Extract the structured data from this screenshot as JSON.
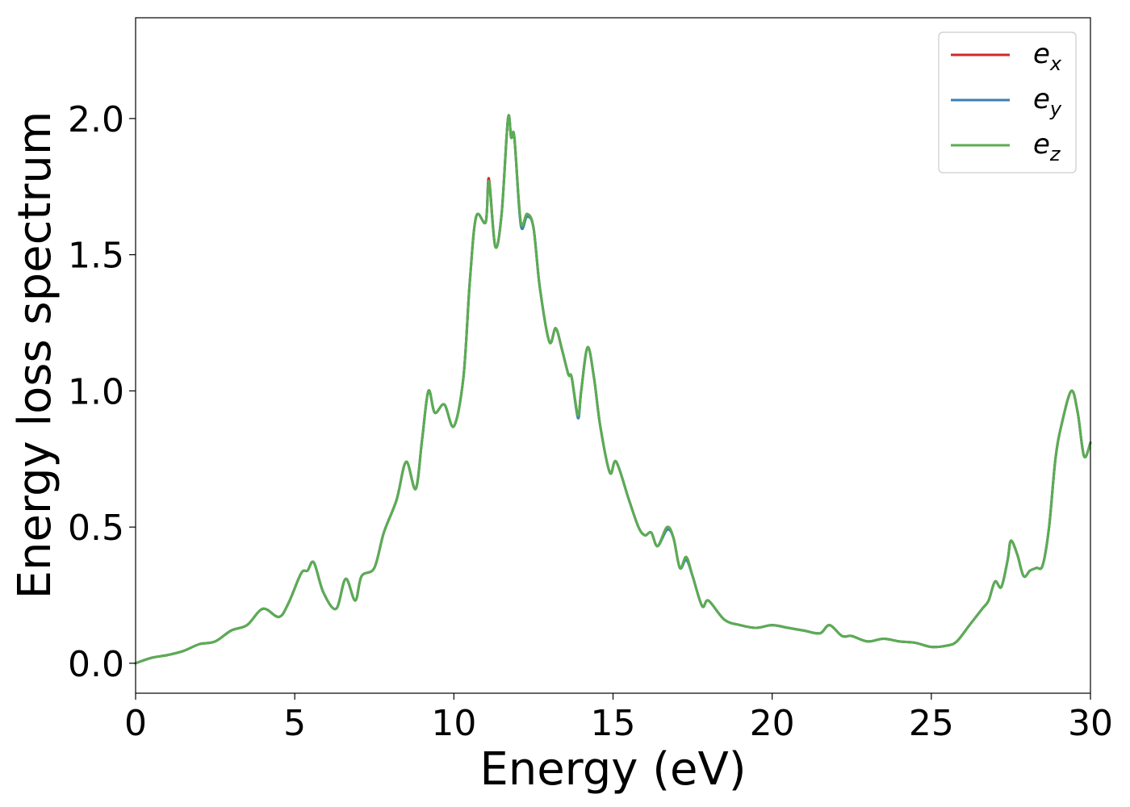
{
  "chart_data": {
    "type": "line",
    "title": "",
    "xlabel": "Energy (eV)",
    "ylabel": "Energy loss spectrum",
    "xlim": [
      0,
      30
    ],
    "ylim": [
      -0.11,
      2.37
    ],
    "xticks": [
      0,
      5,
      10,
      15,
      20,
      25,
      30
    ],
    "xtick_labels": [
      "0",
      "5",
      "10",
      "15",
      "20",
      "25",
      "30"
    ],
    "yticks": [
      0.0,
      0.5,
      1.0,
      1.5,
      2.0
    ],
    "ytick_labels": [
      "0.0",
      "0.5",
      "1.0",
      "1.5",
      "2.0"
    ],
    "grid": false,
    "legend_position": "top-right",
    "x": [
      0,
      0.5,
      1.0,
      1.5,
      2.0,
      2.5,
      3.0,
      3.5,
      4.0,
      4.5,
      4.8,
      5.2,
      5.4,
      5.6,
      5.9,
      6.3,
      6.6,
      6.9,
      7.1,
      7.5,
      7.8,
      8.2,
      8.5,
      8.8,
      9.0,
      9.2,
      9.4,
      9.7,
      10.0,
      10.3,
      10.5,
      10.7,
      11.0,
      11.1,
      11.3,
      11.5,
      11.7,
      11.8,
      11.9,
      12.1,
      12.3,
      12.5,
      12.7,
      13.0,
      13.2,
      13.4,
      13.6,
      13.7,
      13.9,
      14.0,
      14.2,
      14.4,
      14.6,
      14.9,
      15.1,
      15.5,
      15.8,
      16.0,
      16.2,
      16.4,
      16.7,
      16.9,
      17.1,
      17.3,
      17.5,
      17.8,
      18.0,
      18.5,
      19.0,
      19.5,
      20.0,
      20.5,
      21.0,
      21.5,
      21.8,
      22.2,
      22.5,
      23.0,
      23.5,
      24.0,
      24.5,
      25.0,
      25.5,
      25.8,
      26.2,
      26.6,
      26.8,
      27.0,
      27.2,
      27.4,
      27.5,
      27.7,
      27.9,
      28.1,
      28.3,
      28.5,
      28.7,
      28.9,
      29.1,
      29.4,
      29.6,
      29.8,
      30.0
    ],
    "series": [
      {
        "name": "e_x",
        "color": "#d62728",
        "values": [
          0.0,
          0.02,
          0.03,
          0.045,
          0.07,
          0.08,
          0.12,
          0.14,
          0.2,
          0.17,
          0.22,
          0.33,
          0.34,
          0.37,
          0.26,
          0.2,
          0.31,
          0.23,
          0.32,
          0.35,
          0.48,
          0.6,
          0.74,
          0.64,
          0.82,
          1.0,
          0.92,
          0.95,
          0.87,
          1.05,
          1.4,
          1.64,
          1.62,
          1.78,
          1.53,
          1.65,
          2.0,
          1.93,
          1.93,
          1.62,
          1.65,
          1.6,
          1.38,
          1.18,
          1.23,
          1.15,
          1.06,
          1.05,
          0.91,
          1.0,
          1.16,
          1.05,
          0.87,
          0.7,
          0.74,
          0.6,
          0.5,
          0.47,
          0.48,
          0.43,
          0.5,
          0.46,
          0.35,
          0.39,
          0.32,
          0.21,
          0.23,
          0.16,
          0.14,
          0.13,
          0.14,
          0.13,
          0.12,
          0.11,
          0.14,
          0.1,
          0.1,
          0.08,
          0.09,
          0.08,
          0.075,
          0.06,
          0.065,
          0.08,
          0.14,
          0.2,
          0.23,
          0.3,
          0.28,
          0.38,
          0.45,
          0.4,
          0.32,
          0.34,
          0.35,
          0.36,
          0.5,
          0.75,
          0.88,
          1.0,
          0.92,
          0.76,
          0.81
        ]
      },
      {
        "name": "e_y",
        "color": "#3a7fb5",
        "values": [
          0.0,
          0.02,
          0.03,
          0.045,
          0.07,
          0.08,
          0.12,
          0.14,
          0.2,
          0.17,
          0.22,
          0.33,
          0.34,
          0.37,
          0.26,
          0.2,
          0.31,
          0.23,
          0.32,
          0.35,
          0.48,
          0.6,
          0.74,
          0.64,
          0.82,
          1.0,
          0.92,
          0.95,
          0.87,
          1.05,
          1.4,
          1.64,
          1.62,
          1.77,
          1.53,
          1.65,
          2.0,
          1.93,
          1.93,
          1.61,
          1.64,
          1.6,
          1.38,
          1.18,
          1.23,
          1.15,
          1.06,
          1.05,
          0.9,
          1.0,
          1.16,
          1.05,
          0.87,
          0.7,
          0.74,
          0.6,
          0.5,
          0.47,
          0.48,
          0.43,
          0.49,
          0.46,
          0.35,
          0.38,
          0.32,
          0.21,
          0.23,
          0.16,
          0.14,
          0.13,
          0.14,
          0.13,
          0.12,
          0.11,
          0.14,
          0.1,
          0.1,
          0.08,
          0.09,
          0.08,
          0.075,
          0.06,
          0.065,
          0.08,
          0.14,
          0.2,
          0.23,
          0.3,
          0.28,
          0.38,
          0.45,
          0.4,
          0.32,
          0.34,
          0.35,
          0.36,
          0.5,
          0.75,
          0.88,
          1.0,
          0.92,
          0.76,
          0.81
        ]
      },
      {
        "name": "e_z",
        "color": "#5aad52",
        "values": [
          0.0,
          0.02,
          0.03,
          0.045,
          0.07,
          0.08,
          0.12,
          0.14,
          0.2,
          0.17,
          0.22,
          0.33,
          0.34,
          0.37,
          0.26,
          0.2,
          0.31,
          0.23,
          0.32,
          0.35,
          0.48,
          0.6,
          0.74,
          0.64,
          0.82,
          1.0,
          0.92,
          0.95,
          0.87,
          1.05,
          1.4,
          1.64,
          1.62,
          1.77,
          1.53,
          1.65,
          2.0,
          1.93,
          1.93,
          1.62,
          1.65,
          1.6,
          1.38,
          1.18,
          1.23,
          1.15,
          1.06,
          1.05,
          0.91,
          1.0,
          1.16,
          1.05,
          0.87,
          0.7,
          0.74,
          0.6,
          0.5,
          0.47,
          0.48,
          0.43,
          0.5,
          0.46,
          0.35,
          0.39,
          0.32,
          0.21,
          0.23,
          0.16,
          0.14,
          0.13,
          0.14,
          0.13,
          0.12,
          0.11,
          0.14,
          0.1,
          0.1,
          0.08,
          0.09,
          0.08,
          0.075,
          0.06,
          0.065,
          0.08,
          0.14,
          0.2,
          0.23,
          0.3,
          0.28,
          0.38,
          0.45,
          0.4,
          0.32,
          0.34,
          0.35,
          0.36,
          0.5,
          0.75,
          0.88,
          1.0,
          0.92,
          0.76,
          0.81
        ]
      }
    ],
    "legend": [
      {
        "base": "e",
        "sub": "x",
        "color": "#d62728"
      },
      {
        "base": "e",
        "sub": "y",
        "color": "#3a7fb5"
      },
      {
        "base": "e",
        "sub": "z",
        "color": "#5aad52"
      }
    ]
  }
}
